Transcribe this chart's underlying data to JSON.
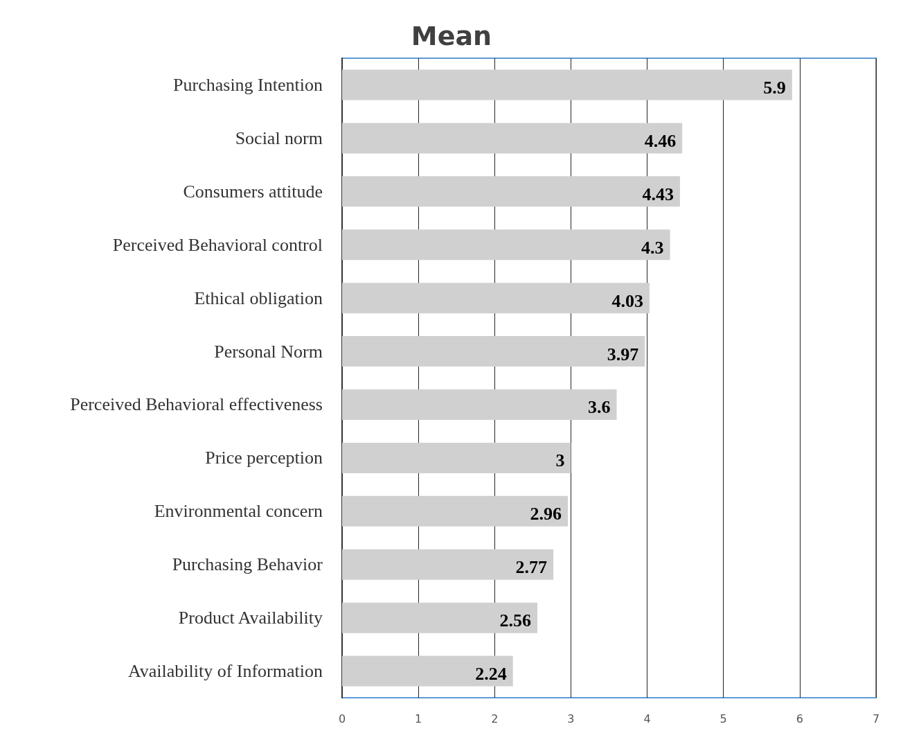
{
  "chart_data": {
    "type": "bar",
    "orientation": "horizontal",
    "title": "Mean",
    "categories": [
      "Purchasing Intention",
      "Social norm",
      "Consumers attitude",
      "Perceived Behavioral control",
      "Ethical obligation",
      "Personal Norm",
      "Perceived Behavioral effectiveness",
      "Price perception",
      "Environmental concern",
      "Purchasing Behavior",
      "Product Availability",
      "Availability of Information"
    ],
    "values": [
      5.9,
      4.46,
      4.43,
      4.3,
      4.03,
      3.97,
      3.6,
      3,
      2.96,
      2.77,
      2.56,
      2.24
    ],
    "color": "#d0d0d0",
    "xlim": [
      0,
      7
    ],
    "xticks": [
      0,
      1,
      2,
      3,
      4,
      5,
      6,
      7
    ],
    "grid": "x",
    "data_labels": true
  }
}
